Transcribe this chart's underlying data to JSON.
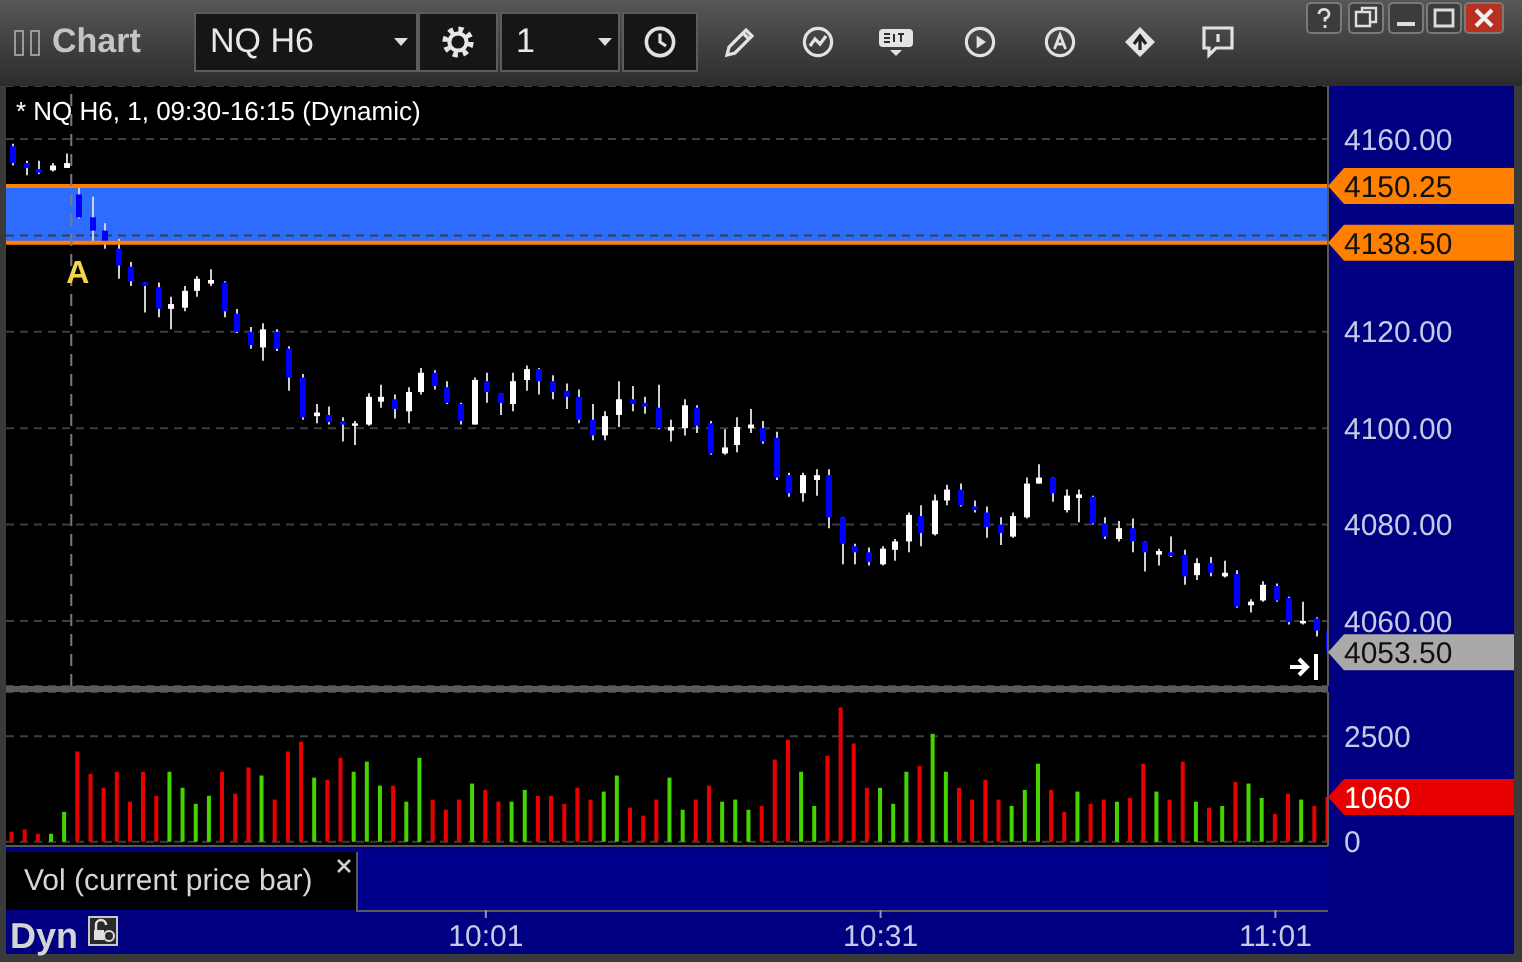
{
  "chart_data": [
    {
      "type": "candlestick",
      "title": "* NQ H6, 1, 09:30-16:15 (Dynamic)",
      "x": [
        9.4167,
        9.4333,
        9.45,
        9.4667,
        9.4833,
        9.5,
        9.5167,
        9.5333,
        9.55,
        9.5667,
        9.5833,
        9.6,
        9.6167,
        9.6333,
        9.65,
        9.6667,
        9.6833,
        9.7,
        9.7167,
        9.7333,
        9.75,
        9.7667,
        9.7833,
        9.8,
        9.8167,
        9.8333,
        9.85,
        9.8667,
        9.8833,
        9.9,
        9.9167,
        9.9333,
        9.95,
        9.9667,
        9.9833,
        10,
        10.0167,
        10.0333,
        10.05,
        10.0667,
        10.0833,
        10.1,
        10.1167,
        10.1333,
        10.15,
        10.1667,
        10.1833,
        10.2,
        10.2167,
        10.2333,
        10.25,
        10.2667,
        10.2833,
        10.3,
        10.3167,
        10.3333,
        10.35,
        10.3667,
        10.3833,
        10.4,
        10.4167,
        10.4333,
        10.45,
        10.4667,
        10.4833,
        10.5,
        10.5167,
        10.5333,
        10.55,
        10.5667,
        10.5833,
        10.6,
        10.6167,
        10.6333,
        10.65,
        10.6667,
        10.6833,
        10.7,
        10.7167,
        10.7333,
        10.75,
        10.7667,
        10.7833,
        10.8,
        10.8167,
        10.8333,
        10.85,
        10.8667,
        10.8833,
        10.9,
        10.9167,
        10.9333,
        10.95,
        10.9667,
        10.9833,
        11,
        11.0167,
        11.0333,
        11.05,
        11.0667,
        11.0833
      ],
      "ohlc": [
        [
          4158.5,
          4159,
          4154.5,
          4155
        ],
        [
          4155,
          4155.5,
          4152.5,
          4154
        ],
        [
          4153.75,
          4155.5,
          4152.75,
          4153
        ],
        [
          4153.5,
          4155,
          4153.25,
          4154.5
        ],
        [
          4154,
          4157,
          4154,
          4155
        ],
        [
          4148.5,
          4150,
          4143.5,
          4143.75
        ],
        [
          4143.75,
          4148,
          4138.5,
          4141
        ],
        [
          4141,
          4142.5,
          4137.25,
          4138.25
        ],
        [
          4137.25,
          4139.25,
          4131,
          4133.75
        ],
        [
          4133.5,
          4134.5,
          4129.5,
          4130.5
        ],
        [
          4130.25,
          4130.25,
          4124,
          4129.5
        ],
        [
          4129.25,
          4130.25,
          4123,
          4124.75
        ],
        [
          4124.75,
          4127.25,
          4120.5,
          4125.75
        ],
        [
          4125,
          4129.5,
          4124.25,
          4128.5
        ],
        [
          4128.5,
          4131.5,
          4127.25,
          4131
        ],
        [
          4130,
          4133,
          4129.5,
          4130.75
        ],
        [
          4130.25,
          4130.5,
          4123,
          4124.25
        ],
        [
          4123.75,
          4124.75,
          4119.75,
          4120
        ],
        [
          4120,
          4121,
          4116.5,
          4117.25
        ],
        [
          4116.75,
          4121.75,
          4114,
          4120.5
        ],
        [
          4120,
          4120.5,
          4116,
          4116.5
        ],
        [
          4116.5,
          4117,
          4107.75,
          4110.5
        ],
        [
          4110.5,
          4111.25,
          4101.75,
          4102.25
        ],
        [
          4102.5,
          4105,
          4101,
          4103.25
        ],
        [
          4102.75,
          4104.5,
          4100.75,
          4101.25
        ],
        [
          4101.5,
          4102.25,
          4097.25,
          4100.75
        ],
        [
          4100.5,
          4101.5,
          4096.5,
          4101
        ],
        [
          4100.75,
          4107.25,
          4100.5,
          4106.5
        ],
        [
          4105.5,
          4109,
          4104.25,
          4106.5
        ],
        [
          4106,
          4107,
          4102,
          4104
        ],
        [
          4103.5,
          4108.5,
          4101,
          4107.5
        ],
        [
          4107.5,
          4112.5,
          4107,
          4111.5
        ],
        [
          4111.5,
          4112,
          4108,
          4108.75
        ],
        [
          4108.5,
          4109.75,
          4105,
          4105.25
        ],
        [
          4105,
          4105.25,
          4100.75,
          4101.5
        ],
        [
          4100.75,
          4110.5,
          4100.75,
          4110
        ],
        [
          4109.75,
          4111.5,
          4105.25,
          4107.5
        ],
        [
          4107.25,
          4107.25,
          4102.75,
          4105.25
        ],
        [
          4105,
          4111.5,
          4103.5,
          4109.75
        ],
        [
          4110,
          4113,
          4107.75,
          4112.25
        ],
        [
          4112.25,
          4112.5,
          4107,
          4109.75
        ],
        [
          4109.75,
          4111,
          4106,
          4107.5
        ],
        [
          4107.75,
          4109.25,
          4104,
          4106.5
        ],
        [
          4106.5,
          4108,
          4101,
          4101.75
        ],
        [
          4101.75,
          4105,
          4097.5,
          4098.5
        ],
        [
          4098.5,
          4103.5,
          4097.5,
          4102.5
        ],
        [
          4102.75,
          4109.75,
          4100.25,
          4106
        ],
        [
          4106,
          4108.75,
          4103.5,
          4105
        ],
        [
          4105.25,
          4106.5,
          4103,
          4104.5
        ],
        [
          4104.25,
          4109,
          4099.75,
          4100
        ],
        [
          4099.5,
          4101.75,
          4097.25,
          4100.25
        ],
        [
          4100,
          4106,
          4098.5,
          4104.75
        ],
        [
          4104.25,
          4104.75,
          4099,
          4100.5
        ],
        [
          4101,
          4101.5,
          4094.5,
          4094.75
        ],
        [
          4094.75,
          4099.75,
          4094.5,
          4096
        ],
        [
          4096.5,
          4102.25,
          4095,
          4100.25
        ],
        [
          4100,
          4104,
          4099,
          4100.75
        ],
        [
          4100,
          4101.5,
          4096.75,
          4097.25
        ],
        [
          4098,
          4099.25,
          4089.25,
          4089.75
        ],
        [
          4090.25,
          4090.75,
          4085.75,
          4086.5
        ],
        [
          4086.5,
          4090.75,
          4084.75,
          4090.25
        ],
        [
          4089.25,
          4091.5,
          4086,
          4090.25
        ],
        [
          4090.25,
          4091.5,
          4079.25,
          4081.5
        ],
        [
          4081.5,
          4081.5,
          4071.75,
          4076
        ],
        [
          4075.5,
          4076,
          4071.75,
          4074.25
        ],
        [
          4074.25,
          4075.25,
          4071.5,
          4072.25
        ],
        [
          4071.75,
          4075.5,
          4071.5,
          4075
        ],
        [
          4074.75,
          4077,
          4072.5,
          4076.5
        ],
        [
          4076.5,
          4082.5,
          4074.25,
          4082
        ],
        [
          4081.75,
          4084,
          4075.5,
          4078.25
        ],
        [
          4078,
          4086.25,
          4077.75,
          4085
        ],
        [
          4085,
          4088.25,
          4084,
          4087.25
        ],
        [
          4087.25,
          4088.5,
          4083.75,
          4084
        ],
        [
          4083.75,
          4085,
          4082.5,
          4083
        ],
        [
          4082.5,
          4083.75,
          4077.25,
          4079.5
        ],
        [
          4080,
          4081.5,
          4075.75,
          4078.25
        ],
        [
          4077.5,
          4082.5,
          4077.25,
          4081.75
        ],
        [
          4081.5,
          4089.75,
          4081.25,
          4088.5
        ],
        [
          4088.5,
          4092.5,
          4088.5,
          4089.75
        ],
        [
          4089.75,
          4089.75,
          4084.75,
          4086.5
        ],
        [
          4083,
          4087.25,
          4082.5,
          4086
        ],
        [
          4085.5,
          4087.25,
          4080.5,
          4086.25
        ],
        [
          4085.75,
          4086,
          4080,
          4080.25
        ],
        [
          4080.25,
          4081.5,
          4077,
          4077.5
        ],
        [
          4077,
          4080.75,
          4076.5,
          4079.25
        ],
        [
          4079.25,
          4081.25,
          4074.25,
          4076.5
        ],
        [
          4076.5,
          4076.5,
          4070.25,
          4074.25
        ],
        [
          4073.75,
          4075,
          4071.5,
          4074.5
        ],
        [
          4074.25,
          4077.5,
          4073.25,
          4073.5
        ],
        [
          4073.75,
          4074.75,
          4067.5,
          4069.25
        ],
        [
          4069.5,
          4073,
          4068.5,
          4072
        ],
        [
          4072,
          4073.25,
          4069.25,
          4070
        ],
        [
          4069.25,
          4072.5,
          4069,
          4070
        ],
        [
          4069.75,
          4070.5,
          4062.75,
          4063
        ],
        [
          4063.25,
          4064.5,
          4061.75,
          4064
        ],
        [
          4064.25,
          4068.25,
          4064,
          4067.5
        ],
        [
          4067.25,
          4067.75,
          4064,
          4064.25
        ],
        [
          4064.75,
          4065,
          4059.25,
          4059.75
        ],
        [
          4059.5,
          4064,
          4059.25,
          4060
        ],
        [
          4060.5,
          4060.75,
          4056.75,
          4058
        ],
        [
          4058,
          4058,
          4053.5,
          4053.5
        ]
      ],
      "colors": [
        "#0000ff",
        "#0000ff",
        "#0000ff",
        "#ffffff",
        "#ffffff",
        "#0000ff",
        "#0000ff",
        "#0000ff",
        "#0000ff",
        "#0000ff",
        "#0000ff",
        "#0000ff",
        "#ffffff",
        "#ffffff",
        "#ffffff",
        "#ffffff",
        "#0000ff",
        "#0000ff",
        "#0000ff",
        "#ffffff",
        "#0000ff",
        "#0000ff",
        "#0000ff",
        "#ffffff",
        "#0000ff",
        "#0000ff",
        "#ffffff",
        "#ffffff",
        "#ffffff",
        "#0000ff",
        "#ffffff",
        "#ffffff",
        "#0000ff",
        "#0000ff",
        "#0000ff",
        "#ffffff",
        "#0000ff",
        "#0000ff",
        "#ffffff",
        "#ffffff",
        "#0000ff",
        "#0000ff",
        "#0000ff",
        "#0000ff",
        "#0000ff",
        "#ffffff",
        "#ffffff",
        "#0000ff",
        "#0000ff",
        "#0000ff",
        "#ffffff",
        "#ffffff",
        "#0000ff",
        "#0000ff",
        "#ffffff",
        "#ffffff",
        "#ffffff",
        "#0000ff",
        "#0000ff",
        "#0000ff",
        "#ffffff",
        "#ffffff",
        "#0000ff",
        "#0000ff",
        "#0000ff",
        "#0000ff",
        "#ffffff",
        "#ffffff",
        "#ffffff",
        "#0000ff",
        "#ffffff",
        "#ffffff",
        "#0000ff",
        "#0000ff",
        "#0000ff",
        "#0000ff",
        "#ffffff",
        "#ffffff",
        "#ffffff",
        "#0000ff",
        "#ffffff",
        "#ffffff",
        "#0000ff",
        "#0000ff",
        "#ffffff",
        "#0000ff",
        "#0000ff",
        "#ffffff",
        "#0000ff",
        "#0000ff",
        "#ffffff",
        "#0000ff",
        "#ffffff",
        "#0000ff",
        "#ffffff",
        "#ffffff",
        "#0000ff",
        "#0000ff",
        "#ffffff",
        "#0000ff",
        "#0000ff"
      ],
      "color": "#d0d0d0",
      "value_labels": [
        null,
        null,
        null,
        null,
        null,
        null,
        null,
        null,
        null,
        null,
        null,
        null,
        null,
        null,
        null,
        null,
        null,
        null,
        null,
        null,
        null,
        null,
        null,
        null,
        null,
        null,
        null,
        null,
        null,
        null,
        null,
        null,
        null,
        null,
        null,
        null,
        null,
        null,
        null,
        null,
        null,
        null,
        null,
        null,
        null,
        null,
        null,
        null,
        null,
        null,
        null,
        null,
        null,
        null,
        null,
        null,
        null,
        null,
        null,
        null,
        null,
        null,
        null,
        null,
        null,
        null,
        null,
        null,
        null,
        null,
        null,
        null,
        null,
        null,
        null,
        null,
        null,
        null,
        null,
        null,
        null,
        null,
        null,
        null,
        null,
        null,
        null,
        null,
        null,
        null,
        null,
        null,
        null,
        null,
        null,
        null,
        null,
        null,
        null,
        null,
        "4053.50"
      ],
      "xlim": [
        9.409,
        11.0833
      ],
      "ylim": [
        4046.5,
        4171
      ],
      "yticks": [
        {
          "value": 4060,
          "label": "4060.00"
        },
        {
          "value": 4080,
          "label": "4080.00"
        },
        {
          "value": 4100,
          "label": "4100.00"
        },
        {
          "value": 4120,
          "label": "4120.00"
        },
        {
          "value": 4140,
          "label": null
        },
        {
          "value": 4160,
          "label": "4160.00"
        }
      ],
      "grid": "y",
      "tick_labels": "y",
      "ref_lines": [
        {
          "axis": "y",
          "value": 4150.25,
          "label": "4150.25",
          "color": "#ff8000"
        },
        {
          "axis": "y",
          "value": 4138.5,
          "label": "4138.50",
          "color": "#ff8000"
        },
        {
          "axis": "x",
          "value": 9.4917,
          "color": "#7a7a7a",
          "line_style": "dashed"
        }
      ],
      "bands": [
        {
          "axis": "y",
          "from": 4138.5,
          "to": 4150.25,
          "color": "#2e6cff"
        }
      ],
      "annotations": [
        "Chart",
        "NQ H6",
        "1",
        {
          "text": "A",
          "x": 9.5,
          "y": 4132
        }
      ]
    },
    {
      "type": "bar",
      "title": "Vol (current price bar)",
      "x": [
        9.4167,
        9.4333,
        9.45,
        9.4667,
        9.4833,
        9.5,
        9.5167,
        9.5333,
        9.55,
        9.5667,
        9.5833,
        9.6,
        9.6167,
        9.6333,
        9.65,
        9.6667,
        9.6833,
        9.7,
        9.7167,
        9.7333,
        9.75,
        9.7667,
        9.7833,
        9.8,
        9.8167,
        9.8333,
        9.85,
        9.8667,
        9.8833,
        9.9,
        9.9167,
        9.9333,
        9.95,
        9.9667,
        9.9833,
        10,
        10.0167,
        10.0333,
        10.05,
        10.0667,
        10.0833,
        10.1,
        10.1167,
        10.1333,
        10.15,
        10.1667,
        10.1833,
        10.2,
        10.2167,
        10.2333,
        10.25,
        10.2667,
        10.2833,
        10.3,
        10.3167,
        10.3333,
        10.35,
        10.3667,
        10.3833,
        10.4,
        10.4167,
        10.4333,
        10.45,
        10.4667,
        10.4833,
        10.5,
        10.5167,
        10.5333,
        10.55,
        10.5667,
        10.5833,
        10.6,
        10.6167,
        10.6333,
        10.65,
        10.6667,
        10.6833,
        10.7,
        10.7167,
        10.7333,
        10.75,
        10.7667,
        10.7833,
        10.8,
        10.8167,
        10.8333,
        10.85,
        10.8667,
        10.8833,
        10.9,
        10.9167,
        10.9333,
        10.95,
        10.9667,
        10.9833,
        11,
        11.0167,
        11.0333,
        11.05,
        11.0667,
        11.0833
      ],
      "values": [
        240,
        290,
        190,
        190,
        710,
        2140,
        1610,
        1280,
        1660,
        950,
        1660,
        1090,
        1660,
        1280,
        900,
        1090,
        1660,
        1140,
        1760,
        1570,
        1000,
        2140,
        2370,
        1520,
        1470,
        1990,
        1660,
        1900,
        1330,
        1330,
        950,
        1990,
        1000,
        760,
        1000,
        1380,
        1230,
        950,
        950,
        1230,
        1090,
        1090,
        900,
        1280,
        1000,
        1190,
        1570,
        810,
        620,
        1000,
        1520,
        760,
        1000,
        1330,
        950,
        1000,
        760,
        850,
        1950,
        2420,
        1660,
        850,
        2040,
        3180,
        2330,
        1280,
        1280,
        900,
        1660,
        1800,
        2560,
        1660,
        1280,
        1000,
        1470,
        1000,
        850,
        1230,
        1850,
        1230,
        710,
        1190,
        900,
        1000,
        950,
        1040,
        1850,
        1190,
        1000,
        1900,
        950,
        810,
        850,
        1420,
        1380,
        1040,
        660,
        1140,
        1000,
        850,
        1060
      ],
      "colors": [
        "#e80000",
        "#e80000",
        "#e80000",
        "#44d400",
        "#44d400",
        "#e80000",
        "#e80000",
        "#e80000",
        "#e80000",
        "#e80000",
        "#e80000",
        "#e80000",
        "#44d400",
        "#44d400",
        "#44d400",
        "#44d400",
        "#e80000",
        "#e80000",
        "#e80000",
        "#44d400",
        "#e80000",
        "#e80000",
        "#e80000",
        "#44d400",
        "#e80000",
        "#e80000",
        "#44d400",
        "#44d400",
        "#44d400",
        "#e80000",
        "#44d400",
        "#44d400",
        "#e80000",
        "#e80000",
        "#e80000",
        "#44d400",
        "#e80000",
        "#e80000",
        "#44d400",
        "#44d400",
        "#e80000",
        "#e80000",
        "#e80000",
        "#e80000",
        "#e80000",
        "#44d400",
        "#44d400",
        "#e80000",
        "#e80000",
        "#e80000",
        "#44d400",
        "#44d400",
        "#e80000",
        "#e80000",
        "#44d400",
        "#44d400",
        "#44d400",
        "#e80000",
        "#e80000",
        "#e80000",
        "#44d400",
        "#44d400",
        "#e80000",
        "#e80000",
        "#e80000",
        "#e80000",
        "#44d400",
        "#44d400",
        "#44d400",
        "#e80000",
        "#44d400",
        "#44d400",
        "#e80000",
        "#e80000",
        "#e80000",
        "#e80000",
        "#44d400",
        "#44d400",
        "#44d400",
        "#e80000",
        "#e80000",
        "#44d400",
        "#e80000",
        "#e80000",
        "#44d400",
        "#e80000",
        "#e80000",
        "#44d400",
        "#e80000",
        "#e80000",
        "#44d400",
        "#e80000",
        "#44d400",
        "#e80000",
        "#44d400",
        "#44d400",
        "#e80000",
        "#e80000",
        "#44d400",
        "#e80000",
        "#e80000"
      ],
      "xlim": [
        9.409,
        11.0833
      ],
      "xticks": [
        {
          "value": 10.0167,
          "label": "10:01"
        },
        {
          "value": 10.5167,
          "label": "10:31"
        },
        {
          "value": 11.0167,
          "label": "11:01"
        }
      ],
      "ylim": [
        -100,
        3550
      ],
      "yticks": [
        0,
        2500
      ],
      "grid": "y",
      "annotations": [
        "Dyn",
        "1060"
      ]
    }
  ]
}
